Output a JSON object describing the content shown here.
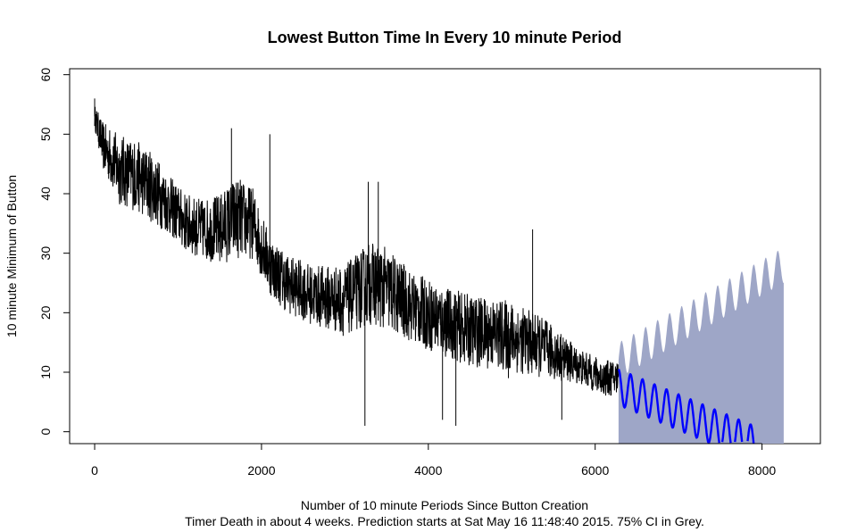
{
  "chart_data": {
    "type": "line",
    "title": "Lowest Button Time In Every 10 minute Period",
    "xlabel": "Number of 10 minute Periods Since Button Creation",
    "subtitle": "Timer Death in about 4 weeks. Prediction starts at Sat May 16 11:48:40 2015. 75% CI in Grey.",
    "ylabel": "10 minute Minimum of Button",
    "xlim": [
      -300,
      8700
    ],
    "ylim": [
      -2,
      61
    ],
    "x_ticks": [
      0,
      2000,
      4000,
      6000,
      8000
    ],
    "x_tick_labels": [
      "0",
      "2000",
      "4000",
      "6000",
      "8000"
    ],
    "y_ticks": [
      0,
      10,
      20,
      30,
      40,
      50,
      60
    ],
    "y_tick_labels": [
      "0",
      "10",
      "20",
      "30",
      "40",
      "50",
      "60"
    ],
    "colors": {
      "observed": "#000000",
      "forecast": "#0000ff",
      "ci_band": "#9ea6c7"
    },
    "series": [
      {
        "name": "observed minimum",
        "color": "#000000",
        "trend_x": [
          0,
          100,
          300,
          500,
          700,
          900,
          1100,
          1300,
          1500,
          1700,
          1900,
          2100,
          2300,
          2600,
          3000,
          3300,
          3500,
          3800,
          4100,
          4500,
          5000,
          5400,
          5800,
          6100,
          6280
        ],
        "trend_y": [
          53,
          48,
          44,
          43,
          41,
          38,
          35,
          34,
          34,
          36,
          35,
          28,
          25,
          23,
          22,
          25,
          24,
          21,
          19,
          17,
          16,
          14,
          11,
          9,
          9
        ],
        "noise_amplitude": [
          2,
          4,
          6,
          6,
          6,
          5,
          5,
          5,
          6,
          7,
          6,
          5,
          5,
          5,
          6,
          7,
          7,
          6,
          6,
          6,
          6,
          5,
          3,
          3,
          3
        ],
        "outliers": [
          {
            "x": 0,
            "y": 56
          },
          {
            "x": 1640,
            "y": 51
          },
          {
            "x": 2100,
            "y": 50
          },
          {
            "x": 3240,
            "y": 1
          },
          {
            "x": 3280,
            "y": 42
          },
          {
            "x": 3400,
            "y": 42
          },
          {
            "x": 4170,
            "y": 2
          },
          {
            "x": 4330,
            "y": 1
          },
          {
            "x": 5600,
            "y": 2
          },
          {
            "x": 5250,
            "y": 34
          },
          {
            "x": 4960,
            "y": 9
          }
        ]
      },
      {
        "name": "prediction",
        "color": "#0000ff",
        "x_start": 6280,
        "x_end": 7900,
        "y_start": 7.5,
        "y_end": -2,
        "oscillation_amplitude": 3,
        "oscillation_period": 144
      }
    ],
    "ci_band": {
      "color": "#9ea6c7",
      "x_start": 6280,
      "x_end": 8260,
      "upper_start": 12,
      "upper_end": 28,
      "lower": -2,
      "oscillation_amplitude": 3,
      "oscillation_period": 144
    }
  }
}
